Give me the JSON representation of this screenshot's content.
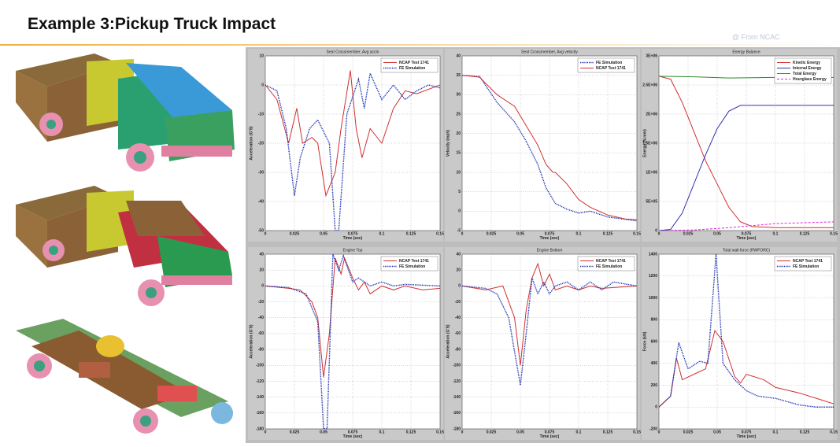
{
  "header": {
    "title": "Example 3:Pickup Truck Impact",
    "source": "@ From NCAC"
  },
  "chart_data": [
    {
      "type": "line",
      "title": "Seat Crossmember, Avg accln",
      "xlabel": "Time (sec)",
      "ylabel": "Acceleration (G'S)",
      "xlim": [
        0,
        0.15
      ],
      "xticks": [
        0,
        0.025,
        0.05,
        0.075,
        0.1,
        0.125,
        0.15
      ],
      "ylim": [
        -50,
        10
      ],
      "yticks": [
        10,
        0,
        -10,
        -20,
        -30,
        -40,
        -50
      ],
      "grid": true,
      "legend": "upper right",
      "series": [
        {
          "name": "NCAP Test 1741",
          "color": "#d03030",
          "style": "solid",
          "x": [
            0,
            0.01,
            0.02,
            0.027,
            0.032,
            0.04,
            0.045,
            0.052,
            0.06,
            0.065,
            0.073,
            0.078,
            0.083,
            0.09,
            0.1,
            0.11,
            0.12,
            0.13,
            0.15
          ],
          "values": [
            0,
            -5,
            -20,
            -8,
            -20,
            -18,
            -20,
            -38,
            -30,
            -15,
            5,
            -15,
            -25,
            -15,
            -20,
            -8,
            -2,
            -3,
            0
          ]
        },
        {
          "name": "FE Simulation",
          "color": "#1a2fb0",
          "style": "dotted",
          "x": [
            0,
            0.01,
            0.018,
            0.025,
            0.03,
            0.038,
            0.045,
            0.055,
            0.06,
            0.063,
            0.07,
            0.08,
            0.085,
            0.09,
            0.1,
            0.11,
            0.12,
            0.13,
            0.14,
            0.15
          ],
          "values": [
            0,
            -2,
            -15,
            -38,
            -25,
            -15,
            -12,
            -20,
            -50,
            -50,
            -10,
            2,
            -8,
            4,
            -5,
            0,
            -5,
            -2,
            0,
            -1
          ]
        }
      ]
    },
    {
      "type": "line",
      "title": "Seat Crossmember, Avg velocity",
      "xlabel": "Time (sec)",
      "ylabel": "Velocity (mph)",
      "xlim": [
        0,
        0.15
      ],
      "xticks": [
        0,
        0.025,
        0.05,
        0.075,
        0.1,
        0.125,
        0.15
      ],
      "ylim": [
        -5,
        40
      ],
      "yticks": [
        40,
        35,
        30,
        25,
        20,
        15,
        10,
        5,
        0,
        -5
      ],
      "grid": true,
      "legend": "upper right",
      "series": [
        {
          "name": "FE Simulation",
          "color": "#1a2fb0",
          "style": "dotted",
          "x": [
            0,
            0.015,
            0.03,
            0.045,
            0.055,
            0.065,
            0.072,
            0.08,
            0.09,
            0.1,
            0.11,
            0.125,
            0.15
          ],
          "values": [
            35,
            34.7,
            28,
            23,
            18,
            12,
            6,
            2,
            0.5,
            -0.5,
            0,
            -1.5,
            -2.5
          ]
        },
        {
          "name": "NCAP Test 1741",
          "color": "#d03030",
          "style": "solid",
          "x": [
            0,
            0.015,
            0.03,
            0.045,
            0.055,
            0.065,
            0.072,
            0.078,
            0.08,
            0.09,
            0.1,
            0.11,
            0.125,
            0.14,
            0.15
          ],
          "values": [
            35,
            34.5,
            30,
            27,
            22,
            17,
            12,
            10,
            10,
            7,
            3,
            1,
            -1,
            -2,
            -2.2
          ]
        }
      ]
    },
    {
      "type": "line",
      "title": "Energy Balance",
      "xlabel": "Time (sec)",
      "ylabel": "Energy (N.mm)",
      "xlim": [
        0,
        0.15
      ],
      "xticks": [
        0,
        0.025,
        0.05,
        0.075,
        0.1,
        0.125,
        0.15
      ],
      "ylim": [
        0,
        3000000
      ],
      "yticks": [
        {
          "value": 3000000,
          "label": "3E+06"
        },
        {
          "value": 2500000,
          "label": "2.5E+06"
        },
        {
          "value": 2000000,
          "label": "2E+06"
        },
        {
          "value": 1500000,
          "label": "1.5E+06"
        },
        {
          "value": 1000000,
          "label": "1E+06"
        },
        {
          "value": 500000,
          "label": "5E+05"
        },
        0
      ],
      "grid": true,
      "legend": "upper right",
      "series": [
        {
          "name": "Kinetic Energy",
          "color": "#d03030",
          "style": "solid",
          "x": [
            0,
            0.01,
            0.02,
            0.03,
            0.04,
            0.05,
            0.06,
            0.07,
            0.08,
            0.1,
            0.15
          ],
          "values": [
            2650000,
            2600000,
            2200000,
            1700000,
            1200000,
            800000,
            400000,
            150000,
            70000,
            50000,
            50000
          ]
        },
        {
          "name": "Internal Energy",
          "color": "#3030b0",
          "style": "solid",
          "x": [
            0,
            0.01,
            0.02,
            0.03,
            0.04,
            0.05,
            0.06,
            0.07,
            0.15
          ],
          "values": [
            0,
            20000,
            300000,
            800000,
            1300000,
            1750000,
            2050000,
            2150000,
            2150000
          ]
        },
        {
          "name": "Total Energy",
          "color": "#2a8a2a",
          "style": "solid",
          "x": [
            0,
            0.03,
            0.06,
            0.1,
            0.15
          ],
          "values": [
            2650000,
            2640000,
            2620000,
            2630000,
            2630000
          ]
        },
        {
          "name": "Hourglass Energy",
          "color": "#e020e0",
          "style": "dashed",
          "x": [
            0,
            0.03,
            0.06,
            0.1,
            0.15
          ],
          "values": [
            0,
            10000,
            50000,
            120000,
            150000
          ]
        }
      ]
    },
    {
      "type": "line",
      "title": "Engine Top",
      "xlabel": "Time (sec)",
      "ylabel": "Acceleration (G'S)",
      "xlim": [
        0,
        0.15
      ],
      "xticks": [
        0,
        0.025,
        0.05,
        0.075,
        0.1,
        0.125,
        0.15
      ],
      "ylim": [
        -180,
        40
      ],
      "yticks": [
        40,
        20,
        0,
        -20,
        -40,
        -60,
        -80,
        -100,
        -120,
        -140,
        -160,
        -180
      ],
      "grid": true,
      "legend": "upper right",
      "series": [
        {
          "name": "NCAP Test 1741",
          "color": "#d03030",
          "style": "solid",
          "x": [
            0,
            0.02,
            0.03,
            0.04,
            0.045,
            0.05,
            0.055,
            0.06,
            0.065,
            0.068,
            0.075,
            0.08,
            0.085,
            0.09,
            0.1,
            0.11,
            0.12,
            0.135,
            0.15
          ],
          "values": [
            0,
            -3,
            -5,
            -20,
            -40,
            -115,
            -60,
            35,
            15,
            35,
            10,
            -5,
            5,
            -10,
            0,
            -5,
            0,
            -5,
            -3
          ]
        },
        {
          "name": "FE Simulation",
          "color": "#1a2fb0",
          "style": "dotted",
          "x": [
            0,
            0.02,
            0.035,
            0.045,
            0.05,
            0.053,
            0.058,
            0.063,
            0.067,
            0.075,
            0.08,
            0.09,
            0.1,
            0.11,
            0.12,
            0.15
          ],
          "values": [
            0,
            -2,
            -10,
            -45,
            -180,
            -180,
            40,
            20,
            38,
            5,
            10,
            0,
            5,
            0,
            2,
            0
          ]
        }
      ]
    },
    {
      "type": "line",
      "title": "Engine Bottom",
      "xlabel": "Time (sec)",
      "ylabel": "Acceleration (G'S)",
      "xlim": [
        0,
        0.15
      ],
      "xticks": [
        0,
        0.025,
        0.05,
        0.075,
        0.1,
        0.125,
        0.15
      ],
      "ylim": [
        -180,
        40
      ],
      "yticks": [
        40,
        20,
        0,
        -20,
        -40,
        -60,
        -80,
        -100,
        -120,
        -140,
        -160,
        -180
      ],
      "grid": true,
      "legend": "upper right",
      "series": [
        {
          "name": "NCAP Test 1741",
          "color": "#d03030",
          "style": "solid",
          "x": [
            0,
            0.02,
            0.035,
            0.045,
            0.05,
            0.055,
            0.06,
            0.065,
            0.07,
            0.075,
            0.08,
            0.09,
            0.1,
            0.11,
            0.12,
            0.15
          ],
          "values": [
            0,
            -5,
            0,
            -40,
            -100,
            -30,
            10,
            28,
            0,
            15,
            -5,
            0,
            -5,
            0,
            -3,
            0
          ]
        },
        {
          "name": "FE Simulation",
          "color": "#1a2fb0",
          "style": "dotted",
          "x": [
            0,
            0.02,
            0.03,
            0.04,
            0.05,
            0.055,
            0.06,
            0.065,
            0.07,
            0.075,
            0.08,
            0.09,
            0.1,
            0.11,
            0.12,
            0.13,
            0.15
          ],
          "values": [
            0,
            -3,
            -10,
            -40,
            -125,
            -60,
            10,
            -10,
            5,
            -10,
            0,
            5,
            -5,
            5,
            -5,
            5,
            0
          ]
        }
      ]
    },
    {
      "type": "line",
      "title": "Total wall force (RWFORC)",
      "xlabel": "Time (sec)",
      "ylabel": "Force (kN)",
      "xlim": [
        0,
        0.15
      ],
      "xticks": [
        0,
        0.025,
        0.05,
        0.075,
        0.1,
        0.125,
        0.15
      ],
      "ylim": [
        -200,
        1400
      ],
      "yticks": [
        1400,
        1200,
        1000,
        800,
        600,
        400,
        200,
        0,
        -200
      ],
      "grid": true,
      "legend": "upper right",
      "series": [
        {
          "name": "NCAP Test 1741",
          "color": "#d03030",
          "style": "solid",
          "x": [
            0,
            0.01,
            0.015,
            0.02,
            0.03,
            0.04,
            0.048,
            0.055,
            0.065,
            0.07,
            0.075,
            0.09,
            0.1,
            0.12,
            0.135,
            0.15
          ],
          "values": [
            0,
            100,
            450,
            250,
            300,
            350,
            700,
            600,
            280,
            220,
            300,
            250,
            180,
            130,
            80,
            30
          ]
        },
        {
          "name": "FE Simulation",
          "color": "#1a2fb0",
          "style": "dotted",
          "x": [
            0,
            0.01,
            0.017,
            0.025,
            0.035,
            0.042,
            0.049,
            0.055,
            0.065,
            0.075,
            0.085,
            0.1,
            0.12,
            0.135,
            0.15
          ],
          "values": [
            0,
            100,
            590,
            350,
            420,
            400,
            1400,
            400,
            250,
            150,
            100,
            80,
            20,
            0,
            0
          ]
        }
      ]
    }
  ]
}
